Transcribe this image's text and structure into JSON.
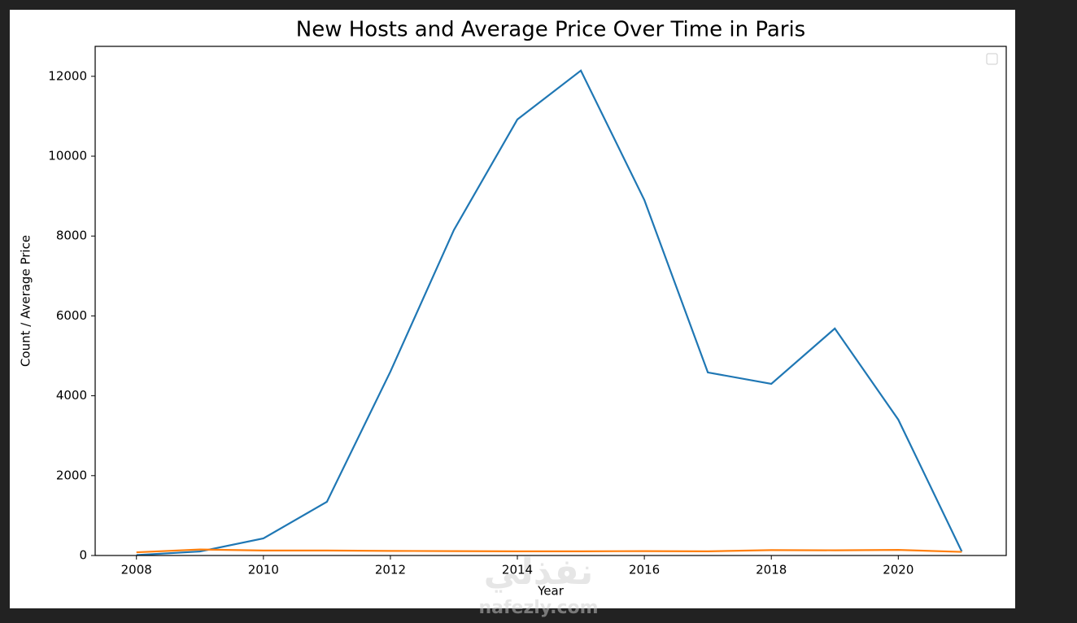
{
  "chart_data": {
    "type": "line",
    "title": "New Hosts and Average Price Over Time in Paris",
    "xlabel": "Year",
    "ylabel": "Count / Average Price",
    "x": [
      2008,
      2009,
      2010,
      2011,
      2012,
      2013,
      2014,
      2015,
      2016,
      2017,
      2018,
      2019,
      2020,
      2021
    ],
    "series": [
      {
        "color": "#1f77b4",
        "values": [
          10,
          100,
          428,
          1345,
          4604,
          8150,
          10920,
          12143,
          8903,
          4584,
          4299,
          5684,
          3402,
          100
        ]
      },
      {
        "color": "#ff7f0e",
        "values": [
          80,
          150,
          125,
          125,
          115,
          110,
          105,
          105,
          110,
          105,
          135,
          130,
          140,
          90
        ]
      }
    ],
    "xlim": [
      2007.35,
      2021.7
    ],
    "xticks": [
      2008,
      2010,
      2012,
      2014,
      2016,
      2018,
      2020
    ],
    "ylim": [
      0,
      12750
    ],
    "yticks": [
      0,
      2000,
      4000,
      6000,
      8000,
      10000,
      12000
    ],
    "legend": "upper right",
    "grid": false
  },
  "watermark": {
    "arabic": "نفذلي",
    "site": "nafezly.com"
  }
}
